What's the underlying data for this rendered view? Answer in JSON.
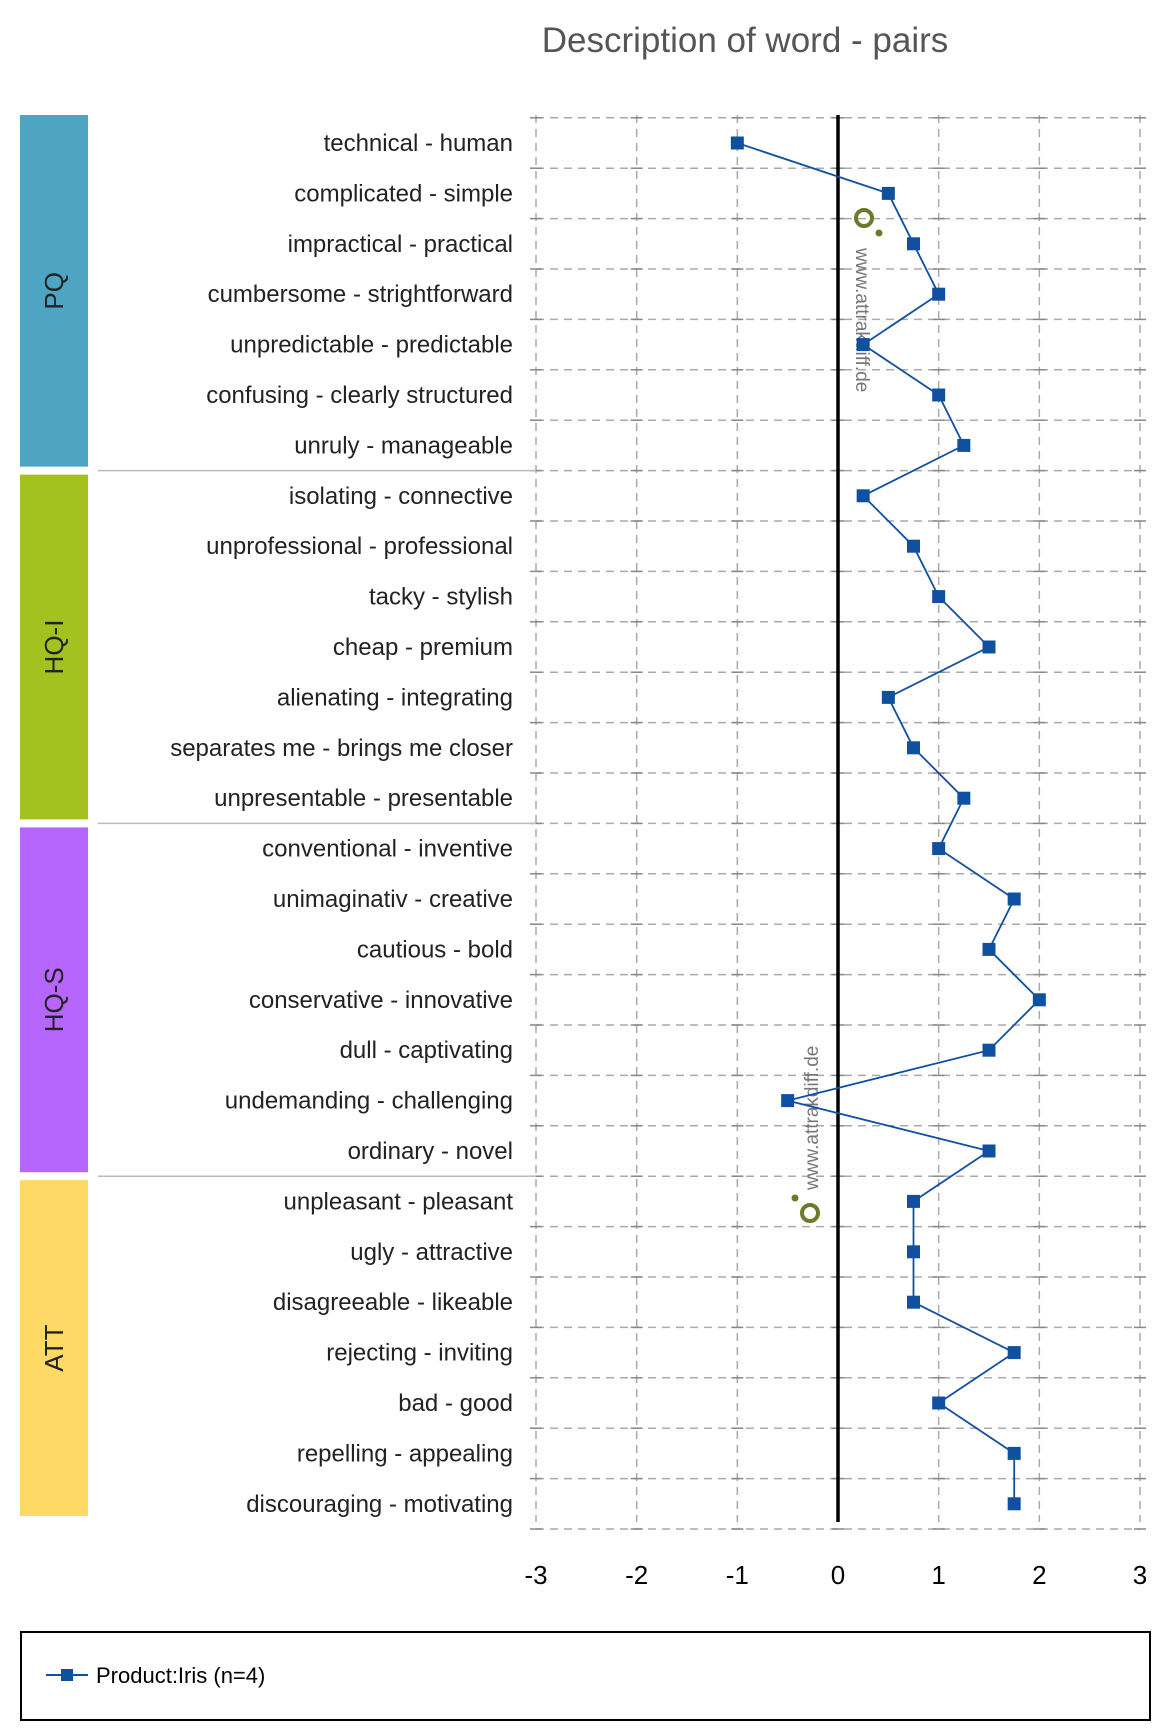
{
  "chart_data": {
    "type": "line",
    "title": "Description of word - pairs",
    "xlim": [
      -3,
      3
    ],
    "x_ticks": [
      "-3",
      "-2",
      "-1",
      "0",
      "1",
      "2",
      "3"
    ],
    "groups": [
      {
        "name": "PQ",
        "start": 0,
        "count": 7,
        "color": "#4ea4c3"
      },
      {
        "name": "HQ-I",
        "start": 7,
        "count": 7,
        "color": "#a4c11f"
      },
      {
        "name": "HQ-S",
        "start": 14,
        "count": 7,
        "color": "#b666fd"
      },
      {
        "name": "ATT",
        "start": 21,
        "count": 7,
        "color": "#fed965"
      }
    ],
    "categories": [
      "technical - human",
      "complicated - simple",
      "impractical - practical",
      "cumbersome - strightforward",
      "unpredictable - predictable",
      "confusing - clearly structured",
      "unruly - manageable",
      "isolating - connective",
      "unprofessional - professional",
      "tacky - stylish",
      "cheap - premium",
      "alienating - integrating",
      "separates me - brings me closer",
      "unpresentable - presentable",
      "conventional - inventive",
      "unimaginativ - creative",
      "cautious - bold",
      "conservative - innovative",
      "dull - captivating",
      "undemanding - challenging",
      "ordinary - novel",
      "unpleasant - pleasant",
      "ugly - attractive",
      "disagreeable - likeable",
      "rejecting - inviting",
      "bad - good",
      "repelling - appealing",
      "discouraging - motivating"
    ],
    "series": [
      {
        "name": "Product:Iris (n=4)",
        "color": "#1050a0",
        "values": [
          -1,
          0.5,
          0.75,
          1,
          0.25,
          1,
          1.25,
          0.25,
          0.75,
          1,
          1.5,
          0.5,
          0.75,
          1.25,
          1,
          1.75,
          1.5,
          2,
          1.5,
          -0.5,
          1.5,
          0.75,
          0.75,
          0.75,
          1.75,
          1,
          1.75,
          1.75
        ]
      }
    ],
    "legend_position": "bottom",
    "grid": true
  },
  "watermark": {
    "text": "www.attrakdiff.de",
    "color": "#6b7a2a"
  }
}
